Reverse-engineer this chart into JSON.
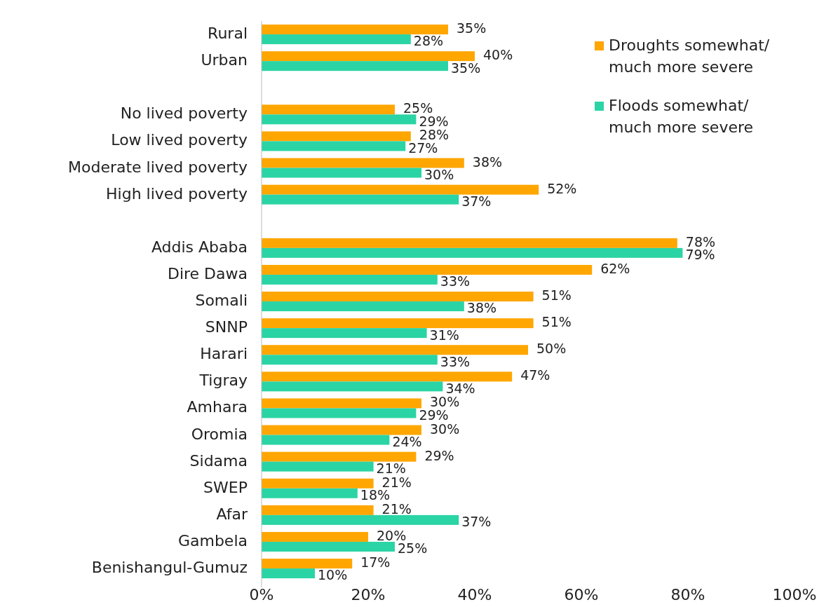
{
  "chart_data": {
    "type": "bar",
    "orientation": "horizontal",
    "categories": [
      "Rural",
      "Urban",
      null,
      "No lived poverty",
      "Low lived poverty",
      "Moderate lived poverty",
      "High lived poverty",
      null,
      "Addis Ababa",
      "Dire Dawa ",
      "Somali",
      "SNNP",
      "Harari",
      "Tigray",
      "Amhara",
      "Oromia",
      "Sidama",
      "SWEP",
      "Afar",
      "Gambela",
      "Benishangul-Gumuz"
    ],
    "series": [
      {
        "name": "Droughts somewhat/ much more severe",
        "color": "#ffa600",
        "values": [
          35,
          40,
          null,
          25,
          28,
          38,
          52,
          null,
          78,
          62,
          51,
          51,
          50,
          47,
          30,
          30,
          29,
          21,
          21,
          20,
          17
        ],
        "value_labels": [
          "35%",
          "40%",
          null,
          "25%",
          "28%",
          "38%",
          "52%",
          null,
          "78%",
          "62%",
          "51%",
          "51%",
          "50%",
          "47%",
          "30%",
          "30%",
          "29%",
          "21%",
          "21%",
          "20%",
          "17%"
        ]
      },
      {
        "name": "Floods somewhat/ much more severe",
        "color": "#2bd4a4",
        "values": [
          28,
          35,
          null,
          29,
          27,
          30,
          37,
          null,
          79,
          33,
          38,
          31,
          33,
          34,
          29,
          24,
          21,
          18,
          37,
          25,
          10
        ],
        "value_labels": [
          "28%",
          "35%",
          null,
          "29%",
          "27%",
          "30%",
          "37%",
          null,
          "79%",
          "33%",
          "38%",
          "31%",
          "33%",
          "34%",
          "29%",
          "24%",
          "21%",
          "18%",
          "37%",
          "25%",
          "10%"
        ]
      }
    ],
    "xlim": [
      0,
      100
    ],
    "xticks": [
      {
        "value": 0,
        "label": "0%"
      },
      {
        "value": 20,
        "label": "20%"
      },
      {
        "value": 40,
        "label": "40%"
      },
      {
        "value": 60,
        "label": "60%"
      },
      {
        "value": 80,
        "label": "80%"
      },
      {
        "value": 100,
        "label": "100%"
      }
    ],
    "legend": "top right",
    "grid": false
  }
}
